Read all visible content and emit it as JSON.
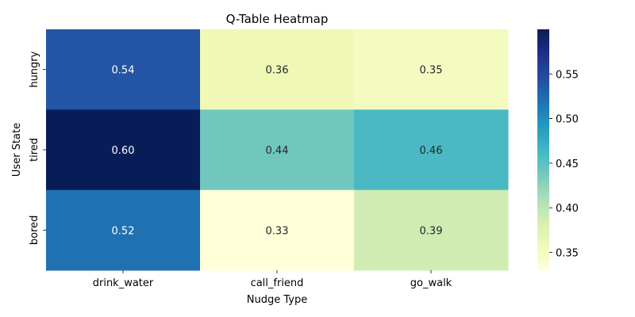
{
  "chart_data": {
    "type": "heatmap",
    "title": "Q-Table Heatmap",
    "xlabel": "Nudge Type",
    "ylabel": "User State",
    "x_categories": [
      "drink_water",
      "call_friend",
      "go_walk"
    ],
    "y_categories": [
      "hungry",
      "tired",
      "bored"
    ],
    "values": [
      [
        0.54,
        0.36,
        0.35
      ],
      [
        0.6,
        0.44,
        0.46
      ],
      [
        0.52,
        0.33,
        0.39
      ]
    ],
    "cell_labels": [
      [
        "0.54",
        "0.36",
        "0.35"
      ],
      [
        "0.60",
        "0.44",
        "0.46"
      ],
      [
        "0.52",
        "0.33",
        "0.39"
      ]
    ],
    "colormap": "YlGnBu",
    "vmin": 0.33,
    "vmax": 0.6,
    "colorbar_ticks": [
      0.35,
      0.4,
      0.45,
      0.5,
      0.55
    ],
    "colorbar_tick_labels": [
      "0.35",
      "0.40",
      "0.45",
      "0.50",
      "0.55"
    ]
  }
}
